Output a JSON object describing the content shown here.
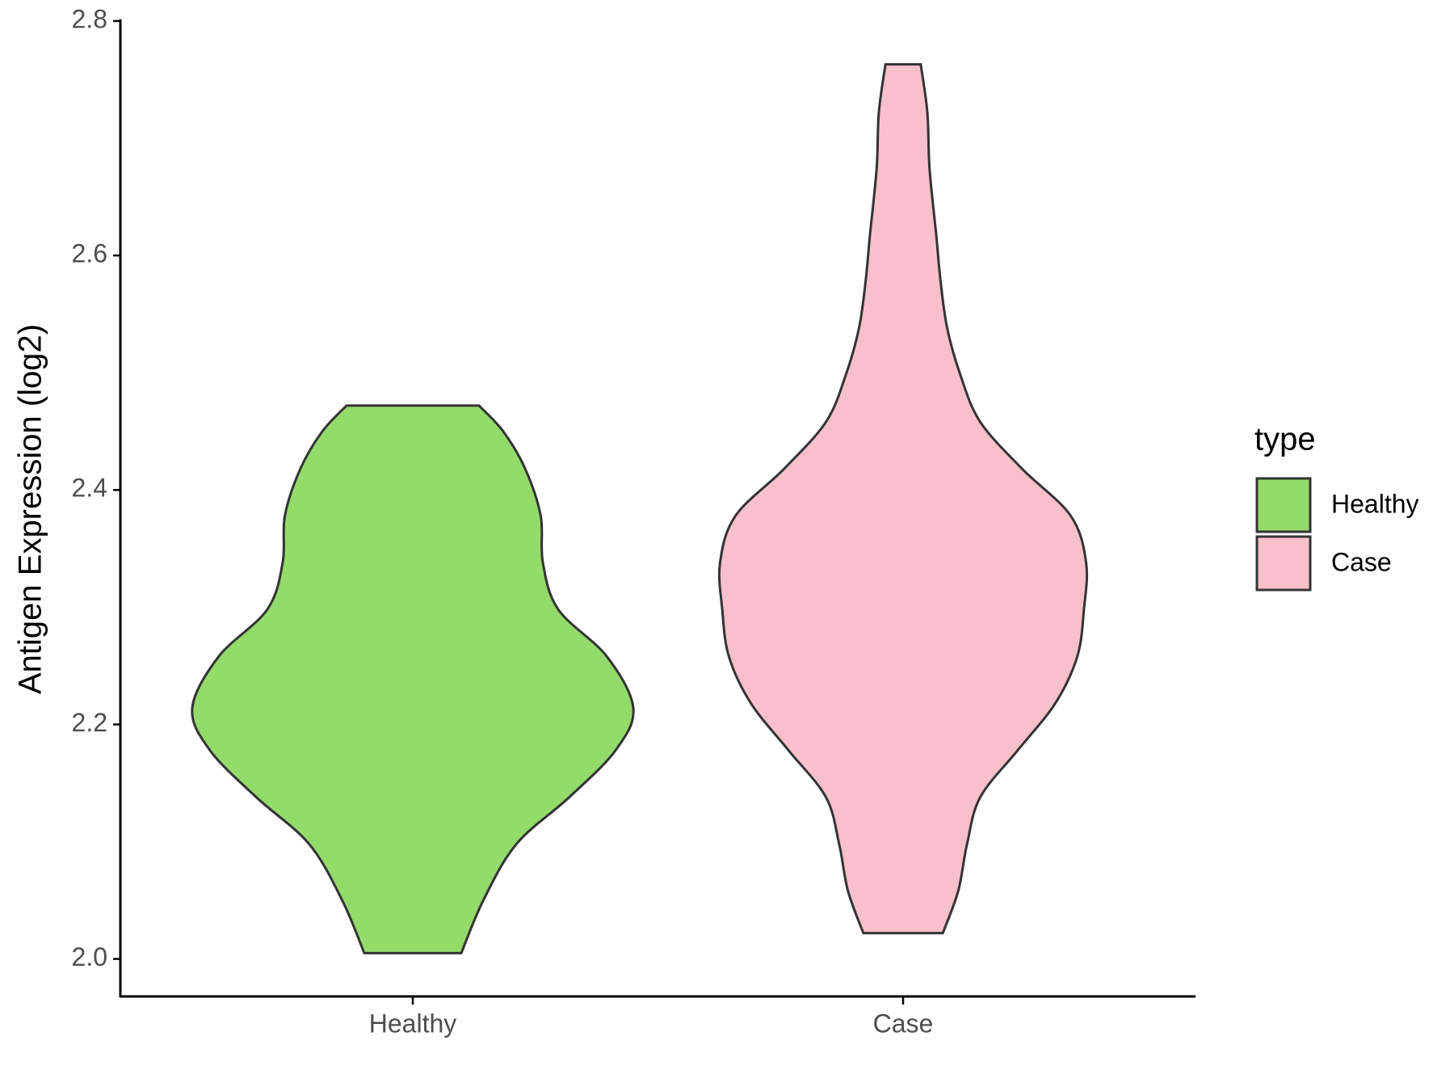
{
  "chart_data": {
    "type": "violin",
    "ylabel": "Antigen Expression (log2)",
    "categories": [
      "Healthy",
      "Case"
    ],
    "legend_title": "type",
    "series": [
      {
        "name": "Healthy",
        "color": "#93db6b",
        "y": [
          2.005,
          2.05,
          2.098,
          2.138,
          2.178,
          2.214,
          2.258,
          2.298,
          2.338,
          2.378,
          2.418,
          2.45,
          2.472
        ],
        "width": [
          0.22,
          0.32,
          0.47,
          0.71,
          0.92,
          1.0,
          0.88,
          0.66,
          0.59,
          0.58,
          0.51,
          0.41,
          0.3
        ]
      },
      {
        "name": "Case",
        "color": "#f8c0cb",
        "y": [
          2.022,
          2.058,
          2.098,
          2.138,
          2.178,
          2.218,
          2.258,
          2.298,
          2.338,
          2.378,
          2.418,
          2.458,
          2.498,
          2.538,
          2.578,
          2.618,
          2.674,
          2.722,
          2.763
        ],
        "width": [
          0.18,
          0.25,
          0.29,
          0.35,
          0.52,
          0.69,
          0.79,
          0.82,
          0.83,
          0.76,
          0.54,
          0.35,
          0.26,
          0.2,
          0.17,
          0.15,
          0.12,
          0.11,
          0.08
        ]
      }
    ],
    "ylim": [
      1.968,
      2.8
    ],
    "yticks": [
      {
        "value": 2.0,
        "label": "2.0"
      },
      2.2,
      2.4,
      2.6,
      2.8
    ],
    "legend": "right"
  }
}
